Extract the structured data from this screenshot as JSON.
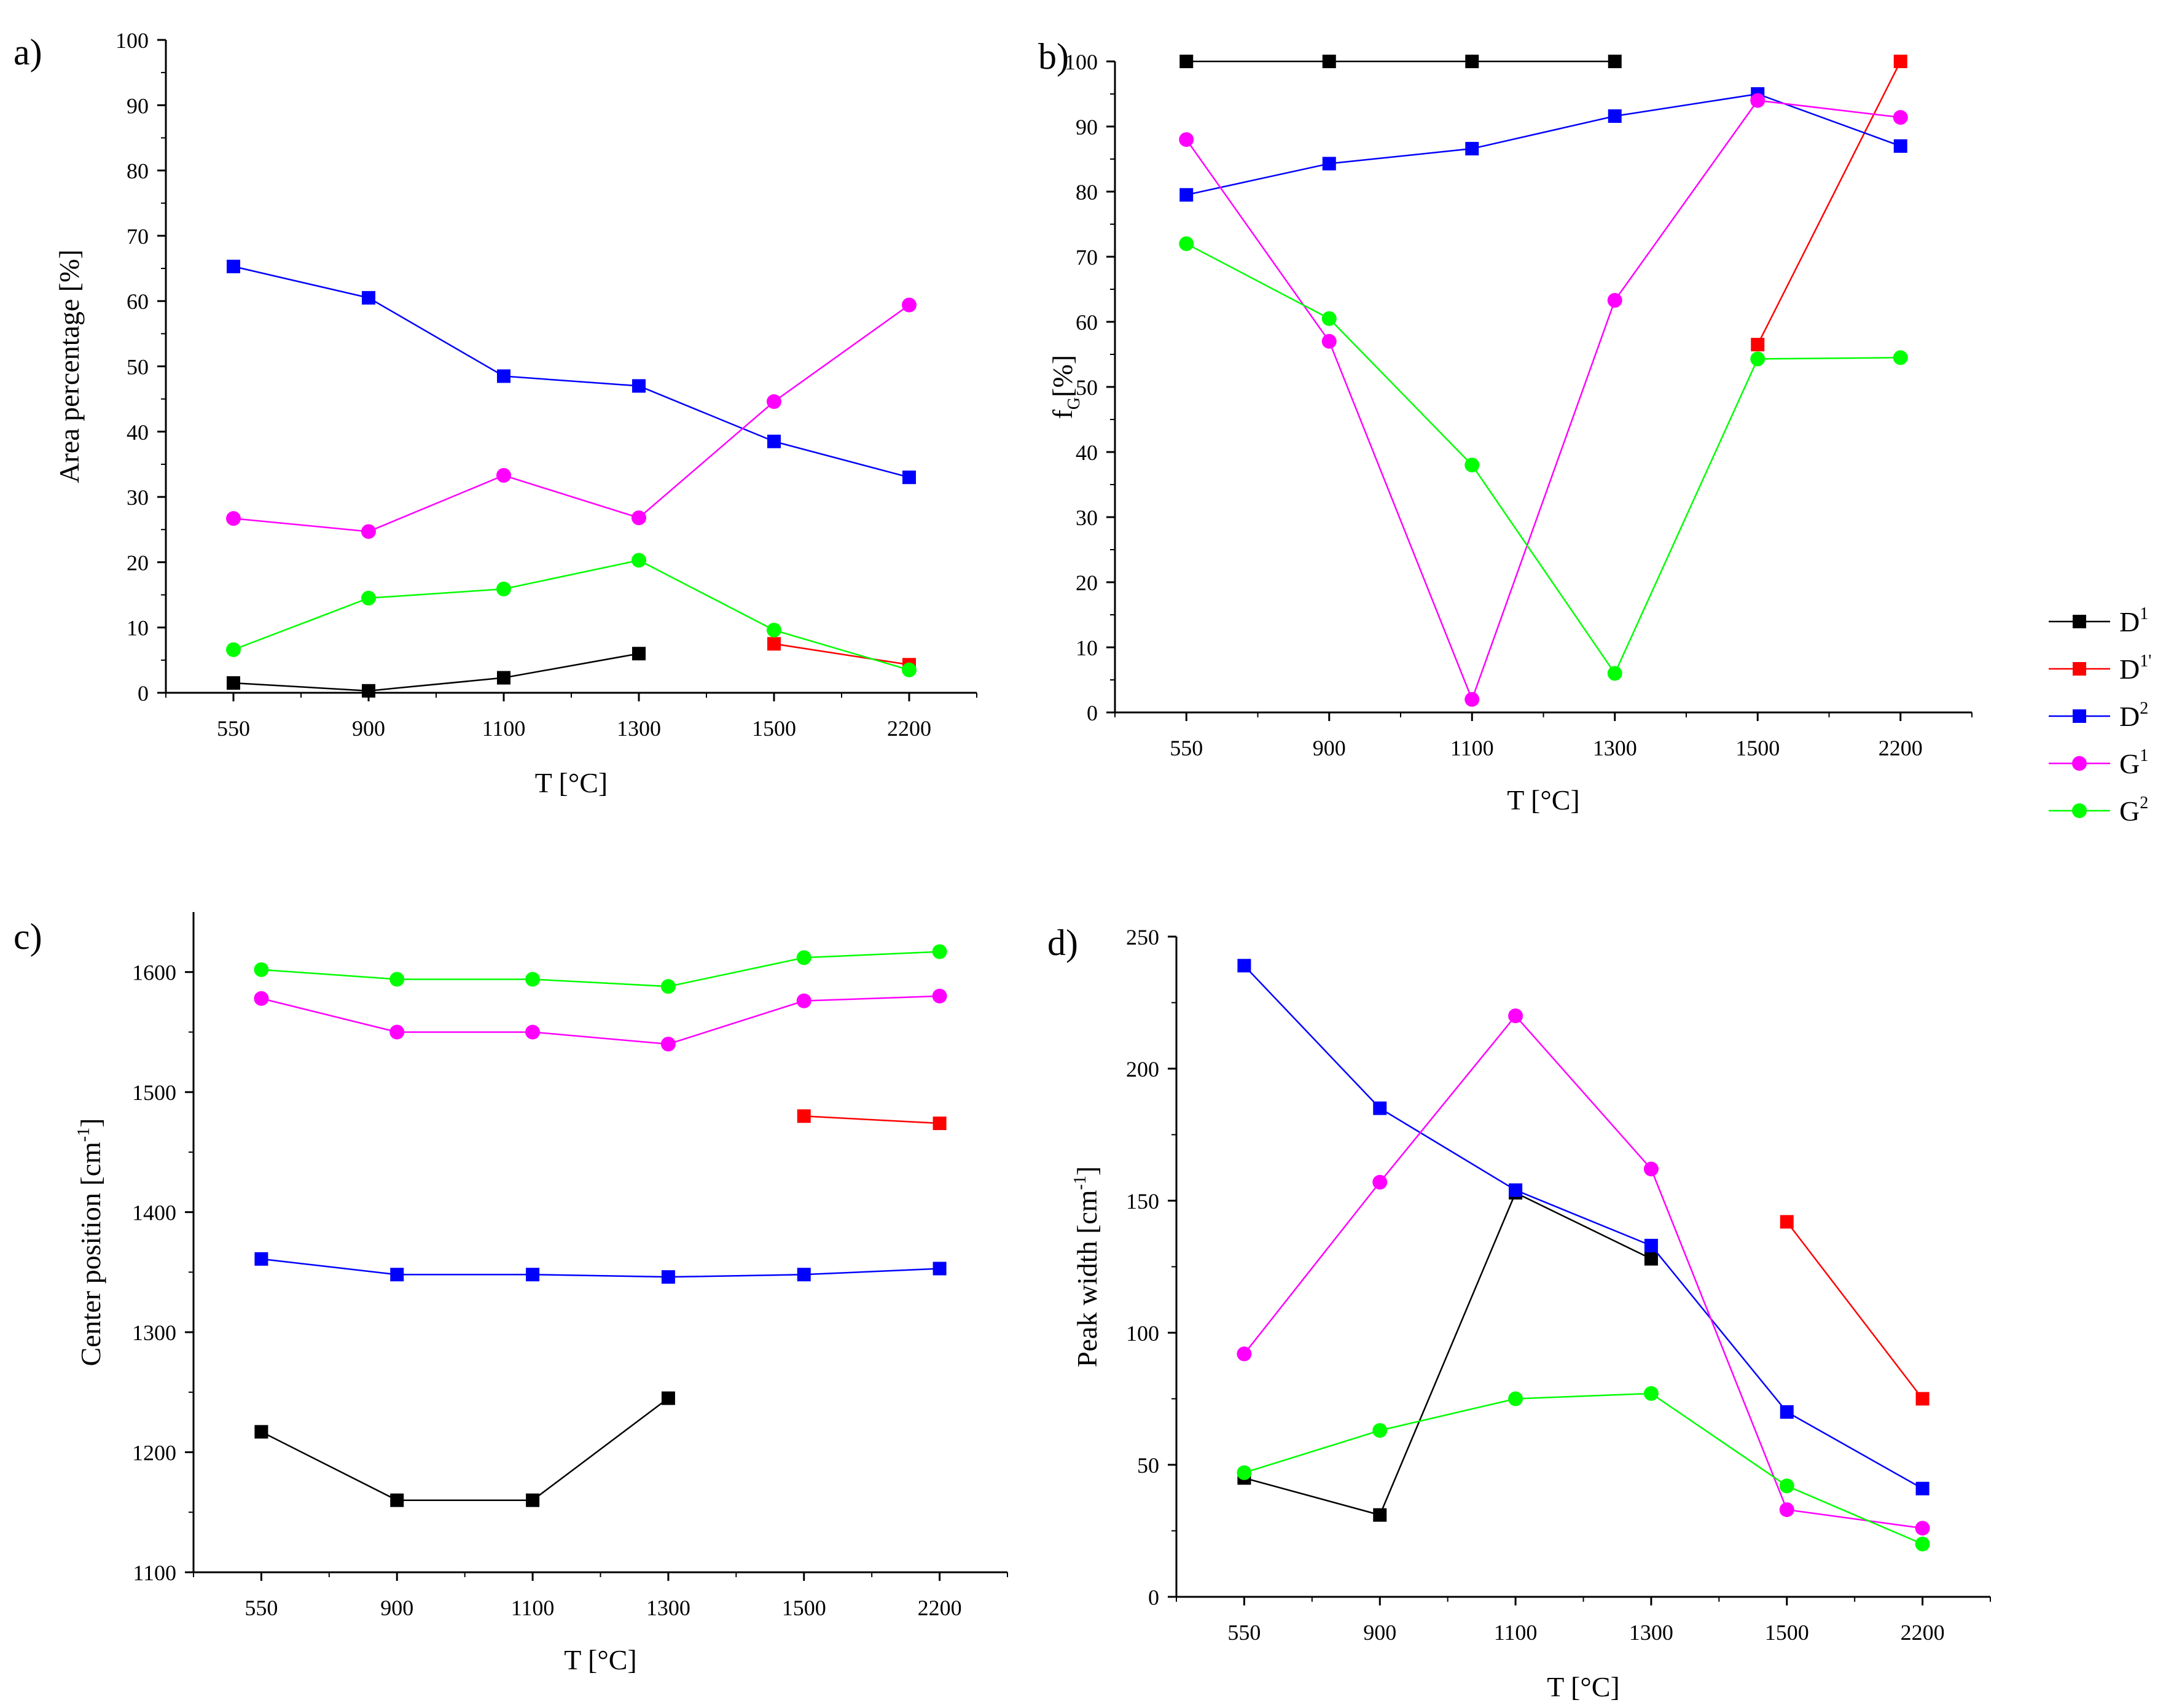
{
  "series_styles": [
    {
      "key": "D1",
      "base": "D",
      "sup": "1",
      "color": "#000000",
      "marker": "square"
    },
    {
      "key": "D1p",
      "base": "D",
      "sup": "1'",
      "color": "#ff0000",
      "marker": "square"
    },
    {
      "key": "D2",
      "base": "D",
      "sup": "2",
      "color": "#0000ff",
      "marker": "square"
    },
    {
      "key": "G1",
      "base": "G",
      "sup": "1",
      "color": "#ff00ff",
      "marker": "circle"
    },
    {
      "key": "G2",
      "base": "G",
      "sup": "2",
      "color": "#00ff00",
      "marker": "circle"
    }
  ],
  "chart_data": [
    {
      "id": "a",
      "type": "line",
      "panel_label": "a)",
      "categories": [
        "550",
        "900",
        "1100",
        "1300",
        "1500",
        "2200"
      ],
      "xlabel": "T [°C]",
      "ylabel": "Area percentage [%]",
      "ylabel_sub": "",
      "ylabel_tail": "",
      "ylim": [
        0,
        100
      ],
      "yticks": [
        "0",
        "10",
        "20",
        "30",
        "40",
        "50",
        "60",
        "70",
        "80",
        "90",
        "100"
      ],
      "series": [
        {
          "key": "D1",
          "values": [
            1.5,
            0.3,
            2.3,
            6.0,
            null,
            null
          ]
        },
        {
          "key": "D1p",
          "values": [
            null,
            null,
            null,
            null,
            7.5,
            4.3
          ]
        },
        {
          "key": "D2",
          "values": [
            65.3,
            60.5,
            48.5,
            47.0,
            38.5,
            33.0
          ]
        },
        {
          "key": "G1",
          "values": [
            26.7,
            24.7,
            33.3,
            26.8,
            44.6,
            59.4
          ]
        },
        {
          "key": "G2",
          "values": [
            6.6,
            14.5,
            15.9,
            20.3,
            9.6,
            3.5
          ]
        }
      ]
    },
    {
      "id": "b",
      "type": "line",
      "panel_label": "b)",
      "categories": [
        "550",
        "900",
        "1100",
        "1300",
        "1500",
        "2200"
      ],
      "xlabel": "T [°C]",
      "ylabel": "f",
      "ylabel_sub": "G",
      "ylabel_tail": "[%]",
      "ylim": [
        0,
        100
      ],
      "yticks": [
        "0",
        "10",
        "20",
        "30",
        "40",
        "50",
        "60",
        "70",
        "80",
        "90",
        "100"
      ],
      "series": [
        {
          "key": "D1",
          "values": [
            100,
            100,
            100,
            100,
            null,
            null
          ]
        },
        {
          "key": "D1p",
          "values": [
            null,
            null,
            null,
            null,
            56.5,
            100
          ]
        },
        {
          "key": "D2",
          "values": [
            79.5,
            84.3,
            86.6,
            91.6,
            95.0,
            87.0
          ]
        },
        {
          "key": "G1",
          "values": [
            88.0,
            57.0,
            2.0,
            63.3,
            94.0,
            91.4
          ]
        },
        {
          "key": "G2",
          "values": [
            72.0,
            60.5,
            38.0,
            6.0,
            54.3,
            54.5
          ]
        }
      ]
    },
    {
      "id": "c",
      "type": "line",
      "panel_label": "c)",
      "categories": [
        "550",
        "900",
        "1100",
        "1300",
        "1500",
        "2200"
      ],
      "xlabel": "T [°C]",
      "ylabel": "Center position [cm",
      "ylabel_sup": "-1",
      "ylabel_tail": "]",
      "ylim": [
        1100,
        1650
      ],
      "yticks": [
        "1100",
        "1200",
        "1300",
        "1400",
        "1500",
        "1600"
      ],
      "series": [
        {
          "key": "D1",
          "values": [
            1217,
            1160,
            1160,
            1245,
            null,
            null
          ]
        },
        {
          "key": "D1p",
          "values": [
            null,
            null,
            null,
            null,
            1480,
            1474
          ]
        },
        {
          "key": "D2",
          "values": [
            1361,
            1348,
            1348,
            1346,
            1348,
            1353
          ]
        },
        {
          "key": "G1",
          "values": [
            1578,
            1550,
            1550,
            1540,
            1576,
            1580
          ]
        },
        {
          "key": "G2",
          "values": [
            1602,
            1594,
            1594,
            1588,
            1612,
            1617
          ]
        }
      ]
    },
    {
      "id": "d",
      "type": "line",
      "panel_label": "d)",
      "categories": [
        "550",
        "900",
        "1100",
        "1300",
        "1500",
        "2200"
      ],
      "xlabel": "T [°C]",
      "ylabel": "Peak width [cm",
      "ylabel_sup": "-1",
      "ylabel_tail": "]",
      "ylim": [
        0,
        250
      ],
      "yticks": [
        "0",
        "50",
        "100",
        "150",
        "200",
        "250"
      ],
      "series": [
        {
          "key": "D1",
          "values": [
            45,
            31,
            153,
            128,
            null,
            null
          ]
        },
        {
          "key": "D1p",
          "values": [
            null,
            null,
            null,
            null,
            142,
            75
          ]
        },
        {
          "key": "D2",
          "values": [
            239,
            185,
            154,
            133,
            70,
            41
          ]
        },
        {
          "key": "G1",
          "values": [
            92,
            157,
            220,
            162,
            33,
            26
          ]
        },
        {
          "key": "G2",
          "values": [
            47,
            63,
            75,
            77,
            42,
            20
          ]
        }
      ]
    }
  ]
}
